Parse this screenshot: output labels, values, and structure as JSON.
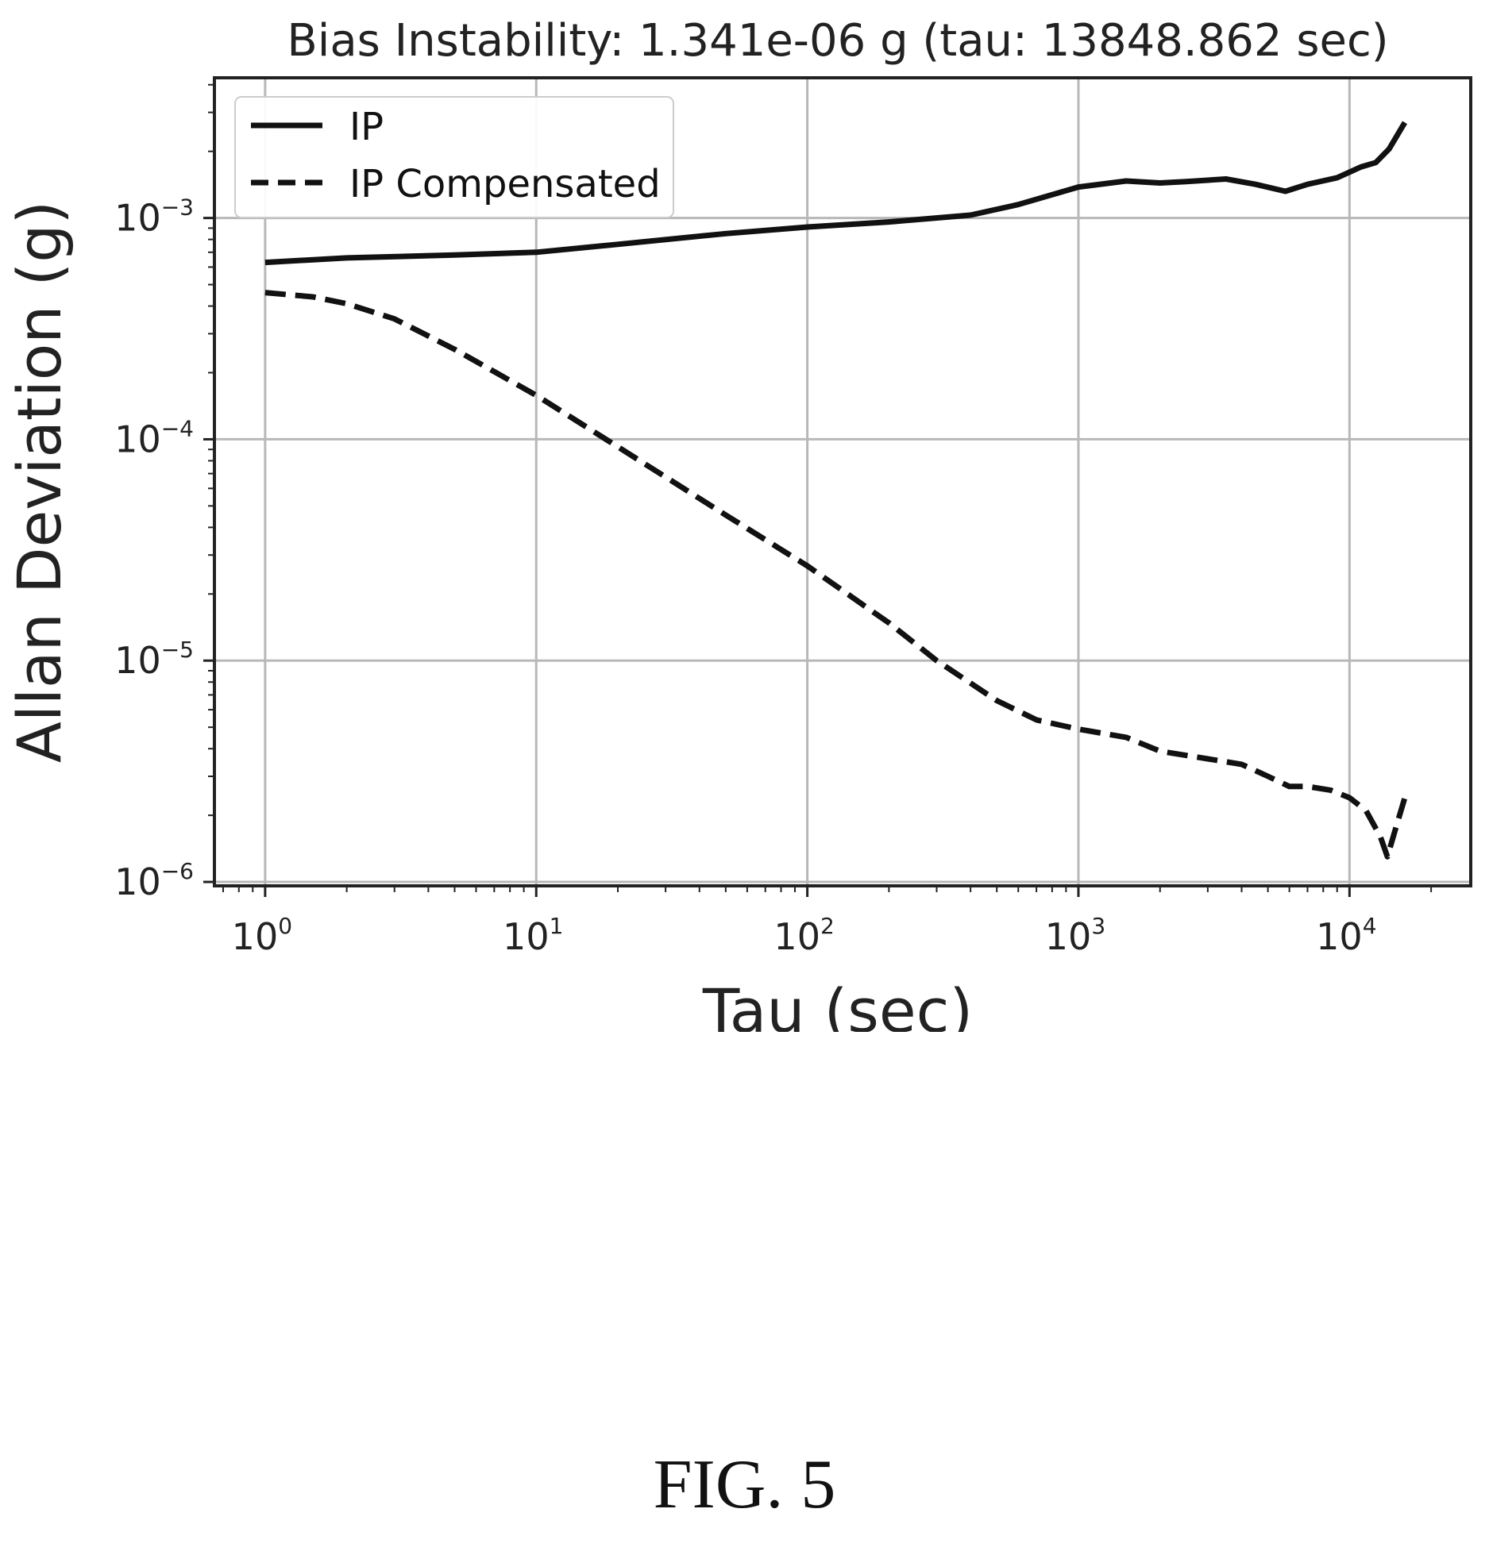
{
  "chart_data": {
    "type": "line",
    "title": "Bias Instability: 1.341e-06 g (tau: 13848.862 sec)",
    "xlabel": "Tau (sec)",
    "ylabel": "Allan Deviation (g)",
    "xscale": "log",
    "yscale": "log",
    "xlim": [
      0.65,
      28000
    ],
    "ylim": [
      9.6e-07,
      0.0043
    ],
    "grid": true,
    "legend_position": "top-left",
    "x_ticks": [
      {
        "value": 1,
        "base": "10",
        "exp": "0"
      },
      {
        "value": 10,
        "base": "10",
        "exp": "1"
      },
      {
        "value": 100,
        "base": "10",
        "exp": "2"
      },
      {
        "value": 1000,
        "base": "10",
        "exp": "3"
      },
      {
        "value": 10000,
        "base": "10",
        "exp": "4"
      }
    ],
    "y_ticks": [
      {
        "value": 1e-06,
        "base": "10",
        "exp": "−6"
      },
      {
        "value": 1e-05,
        "base": "10",
        "exp": "−5"
      },
      {
        "value": 0.0001,
        "base": "10",
        "exp": "−4"
      },
      {
        "value": 0.001,
        "base": "10",
        "exp": "−3"
      }
    ],
    "series": [
      {
        "name": "IP",
        "style": "solid",
        "color": "#111111",
        "x": [
          1,
          2,
          5,
          10,
          20,
          50,
          100,
          200,
          400,
          600,
          1000,
          1500,
          2000,
          2500,
          3500,
          4500,
          5800,
          7000,
          9000,
          11000,
          12500,
          14000,
          16000
        ],
        "y": [
          0.00063,
          0.00066,
          0.00068,
          0.0007,
          0.00076,
          0.00085,
          0.00091,
          0.00096,
          0.00103,
          0.00115,
          0.00138,
          0.00147,
          0.00144,
          0.00146,
          0.0015,
          0.00142,
          0.00132,
          0.00142,
          0.00152,
          0.0017,
          0.00178,
          0.00205,
          0.0027
        ]
      },
      {
        "name": "IP Compensated",
        "style": "dashed",
        "color": "#111111",
        "x": [
          1,
          1.5,
          2,
          3,
          5,
          10,
          20,
          50,
          100,
          200,
          300,
          500,
          700,
          1000,
          1500,
          2000,
          3000,
          4000,
          5000,
          6000,
          7000,
          8500,
          10000,
          11500,
          13000,
          13800,
          14500,
          15300,
          16000
        ],
        "y": [
          0.00046,
          0.00044,
          0.00041,
          0.00035,
          0.000255,
          0.000158,
          9.25e-05,
          4.55e-05,
          2.68e-05,
          1.48e-05,
          1e-05,
          6.6e-06,
          5.4e-06,
          4.9e-06,
          4.5e-06,
          3.9e-06,
          3.6e-06,
          3.4e-06,
          3e-06,
          2.7e-06,
          2.7e-06,
          2.6e-06,
          2.4e-06,
          2.1e-06,
          1.6e-06,
          1.3e-06,
          1.6e-06,
          2e-06,
          2.4e-06
        ]
      }
    ]
  },
  "figure": {
    "caption": "FIG. 5"
  }
}
